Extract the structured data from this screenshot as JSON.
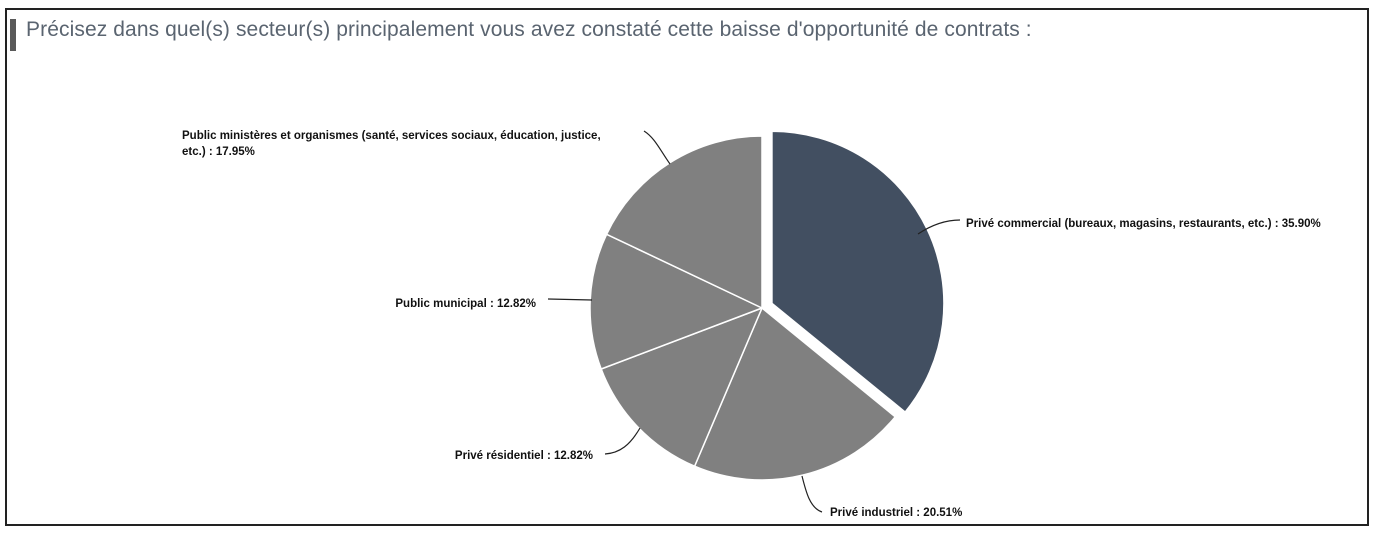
{
  "header": {
    "title": "Précisez dans quel(s) secteur(s) principalement vous avez constaté cette baisse d'opportunité de contrats :"
  },
  "colors": {
    "highlight": "#424f61",
    "slice": "#808080",
    "accent_bar": "#595959"
  },
  "chart_data": {
    "type": "pie",
    "title": "",
    "slices": [
      {
        "label": "Privé commercial (bureaux, magasins, restaurants, etc.)",
        "value": 35.9,
        "display": "Privé commercial (bureaux, magasins, restaurants, etc.)  : 35.90%",
        "exploded": true
      },
      {
        "label": "Privé industriel",
        "value": 20.51,
        "display": "Privé industriel : 20.51%",
        "exploded": false
      },
      {
        "label": "Privé résidentiel",
        "value": 12.82,
        "display": "Privé résidentiel : 12.82%",
        "exploded": false
      },
      {
        "label": "Public municipal",
        "value": 12.82,
        "display": "Public municipal  : 12.82%",
        "exploded": false
      },
      {
        "label": "Public ministères et organismes (santé, services sociaux, éducation, justice, etc.)",
        "value": 17.95,
        "display_lines": [
          "Public ministères et organismes (santé, services sociaux, éducation, justice,",
          "etc.) : 17.95%"
        ],
        "exploded": false
      }
    ]
  }
}
